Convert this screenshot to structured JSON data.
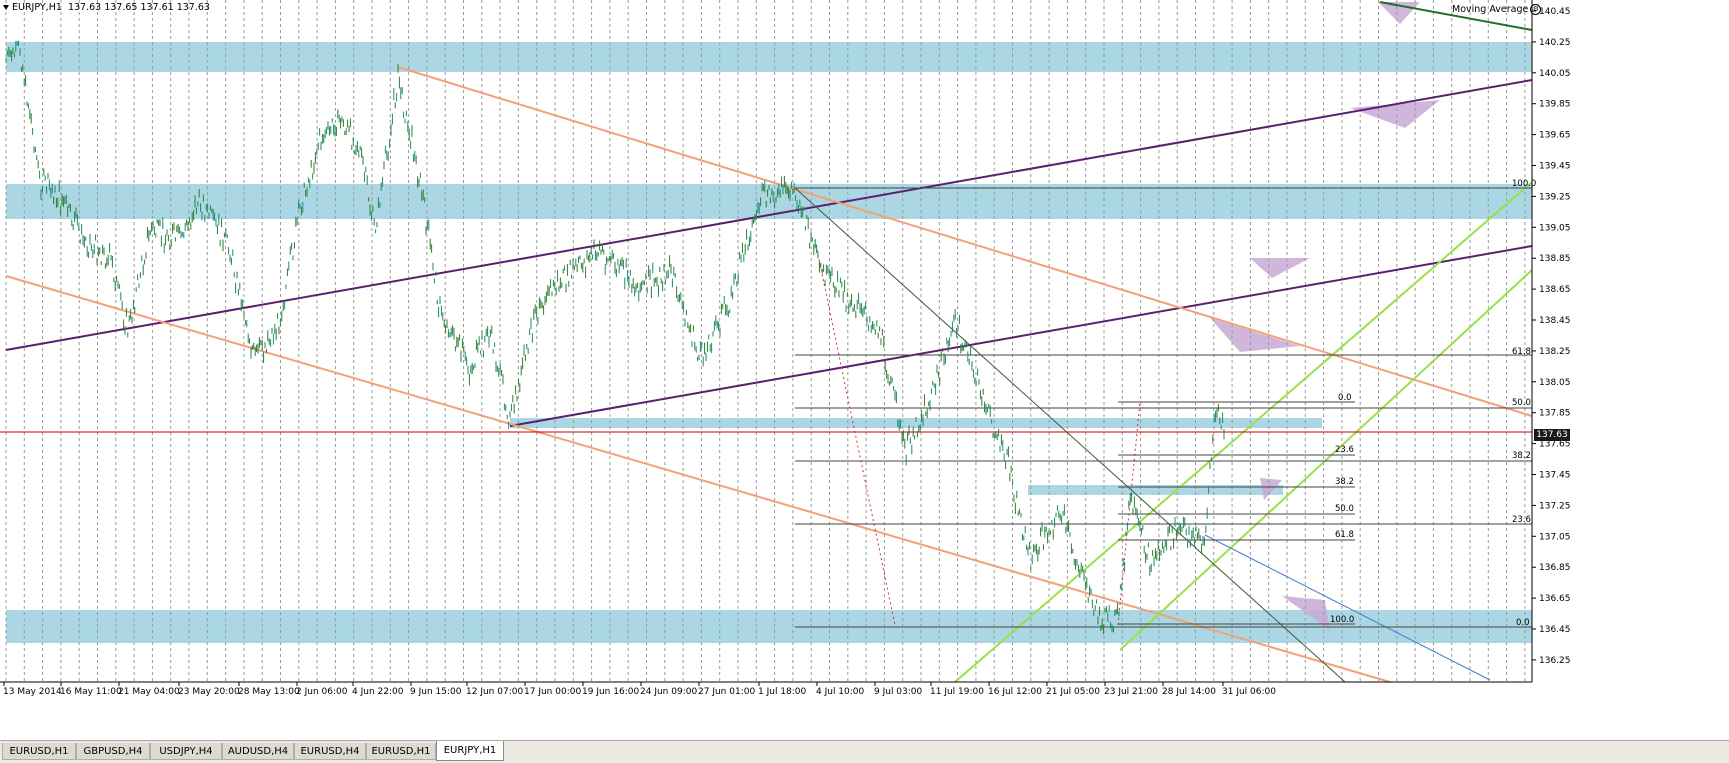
{
  "header": {
    "symbol": "EURJPY,H1",
    "ohlc": "137.63 137.65 137.61 137.63"
  },
  "indicator": {
    "label": "Moving Average",
    "icon": "settings-icon"
  },
  "current_price": "137.63",
  "price_axis": [
    "140.45",
    "140.25",
    "140.05",
    "139.85",
    "139.65",
    "139.45",
    "139.25",
    "139.05",
    "138.85",
    "138.65",
    "138.45",
    "138.25",
    "138.05",
    "137.85",
    "137.65",
    "137.45",
    "137.25",
    "137.05",
    "136.85",
    "136.65",
    "136.45",
    "136.25"
  ],
  "time_axis": [
    "13 May 2014",
    "16 May 11:00",
    "21 May 04:00",
    "23 May 20:00",
    "28 May 13:00",
    "2 Jun 06:00",
    "4 Jun 22:00",
    "9 Jun 15:00",
    "12 Jun 07:00",
    "17 Jun 00:00",
    "19 Jun 16:00",
    "24 Jun 09:00",
    "27 Jun 01:00",
    "1 Jul 18:00",
    "4 Jul 10:00",
    "9 Jul 03:00",
    "11 Jul 19:00",
    "16 Jul 12:00",
    "21 Jul 05:00",
    "23 Jul 21:00",
    "28 Jul 14:00",
    "31 Jul 06:00"
  ],
  "fibo_levels_a": [
    "100.0",
    "61.8",
    "50.0",
    "38.2",
    "23.6",
    "0.0"
  ],
  "fibo_levels_b": [
    "0.0",
    "23.6",
    "38.2",
    "50.0",
    "61.8",
    "100.0"
  ],
  "tabs": [
    {
      "label": "EURUSD,H1",
      "active": false
    },
    {
      "label": "GBPUSD,H4",
      "active": false
    },
    {
      "label": "USDJPY,H4",
      "active": false
    },
    {
      "label": "AUDUSD,H4",
      "active": false
    },
    {
      "label": "EURUSD,H4",
      "active": false
    },
    {
      "label": "EURUSD,H1",
      "active": false
    },
    {
      "label": "EURJPY,H1",
      "active": true
    }
  ],
  "colors": {
    "zone": "#aad7e3",
    "candles_up": "#1f8a6a",
    "candles_down": "#2e7d32",
    "channel_purple": "#5a1f6e",
    "channel_orange": "#f2a27a",
    "channel_green": "#99e04a",
    "moving_average": "#1f6e2e",
    "price_line": "#cc0000",
    "grid": "#9a9a9a"
  }
}
